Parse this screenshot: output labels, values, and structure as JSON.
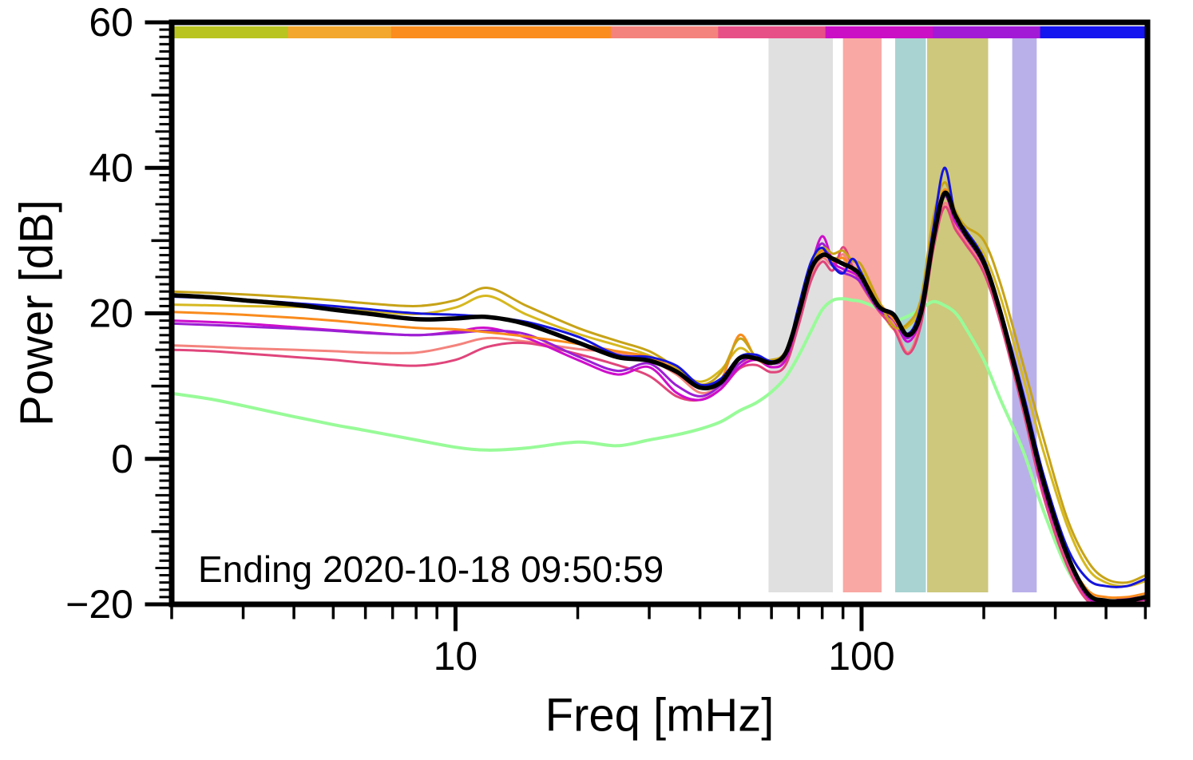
{
  "chart_data": {
    "type": "line",
    "title": "",
    "xlabel": "Freq [mHz]",
    "ylabel": "Power [dB]",
    "annotation": "Ending 2020-10-18 09:50:59",
    "x_scale": "log",
    "xlim": [
      2,
      506
    ],
    "ylim": [
      -20,
      60
    ],
    "grid": false,
    "legend": "none",
    "x_ticks_major": [
      {
        "value": 10,
        "label": "10"
      },
      {
        "value": 100,
        "label": "100"
      }
    ],
    "y_ticks_major": [
      {
        "value": -20,
        "label": "-20"
      },
      {
        "value": 0,
        "label": "0"
      },
      {
        "value": 20,
        "label": "20"
      },
      {
        "value": 40,
        "label": "40"
      },
      {
        "value": 60,
        "label": "60"
      }
    ],
    "bands": [
      {
        "name": "band-gray",
        "x0": 59,
        "x1": 85,
        "color": "#e0e0e0"
      },
      {
        "name": "band-red",
        "x0": 90,
        "x1": 112,
        "color": "#f9a8a4"
      },
      {
        "name": "band-teal",
        "x0": 121,
        "x1": 144,
        "color": "#a9d3d2"
      },
      {
        "name": "band-khaki",
        "x0": 145,
        "x1": 205,
        "color": "#cdc87c"
      },
      {
        "name": "band-lavender",
        "x0": 235,
        "x1": 270,
        "color": "#b9b0ea"
      }
    ],
    "colorbar_segments": [
      {
        "color": "#b9c421",
        "f0": 0.0,
        "f1": 0.119
      },
      {
        "color": "#f3a72c",
        "f0": 0.119,
        "f1": 0.225
      },
      {
        "color": "#fb8c1e",
        "f0": 0.225,
        "f1": 0.45
      },
      {
        "color": "#f4837d",
        "f0": 0.45,
        "f1": 0.56
      },
      {
        "color": "#e75087",
        "f0": 0.56,
        "f1": 0.67
      },
      {
        "color": "#cb0fc4",
        "f0": 0.67,
        "f1": 0.78
      },
      {
        "color": "#a21ad6",
        "f0": 0.78,
        "f1": 0.89
      },
      {
        "color": "#1515ef",
        "f0": 0.89,
        "f1": 1.0
      }
    ],
    "x": [
      2,
      2.5,
      3,
      4,
      5,
      6,
      8,
      10,
      12,
      15,
      20,
      25,
      30,
      35,
      40,
      45,
      50,
      55,
      60,
      65,
      70,
      75,
      80,
      85,
      90,
      95,
      100,
      110,
      120,
      130,
      140,
      150,
      160,
      170,
      180,
      200,
      220,
      250,
      280,
      320,
      360,
      400,
      450,
      500
    ],
    "series": [
      {
        "name": "spectrum-green",
        "color": "#98fb98",
        "lw": 4,
        "values": [
          9,
          8.2,
          7.3,
          5.8,
          4.7,
          3.9,
          2.6,
          1.6,
          1.2,
          1.5,
          2.3,
          1.8,
          2.6,
          3.3,
          4.1,
          5.1,
          6.6,
          7.7,
          9.2,
          11.2,
          14.2,
          17.5,
          20.5,
          21.8,
          22,
          21.8,
          21.6,
          20.6,
          19.1,
          19.6,
          20.6,
          21.6,
          21.1,
          20.1,
          18.1,
          13.6,
          8.1,
          1.1,
          -7,
          -15,
          -19,
          -20,
          -20,
          -20
        ]
      },
      {
        "name": "spectrum-gold-2",
        "color": "#d6b81f",
        "lw": 3,
        "values": [
          21.2,
          21.1,
          21,
          20.9,
          20.7,
          20.4,
          19.9,
          20.8,
          22.4,
          19.8,
          17.2,
          15.6,
          14.2,
          12.2,
          10.6,
          12.2,
          15.2,
          13.7,
          13.2,
          14.2,
          19.5,
          25.5,
          28.2,
          27.6,
          27.6,
          26.2,
          25.8,
          21.2,
          17.8,
          18.2,
          21.2,
          32,
          37,
          33.8,
          31.2,
          28.2,
          22.2,
          11.2,
          1.2,
          -9,
          -15,
          -17,
          -17.5,
          -16.8
        ]
      },
      {
        "name": "spectrum-salmon",
        "color": "#f4837d",
        "lw": 3,
        "values": [
          15.6,
          15.4,
          15.2,
          15,
          14.8,
          14.6,
          14.6,
          15.6,
          16.6,
          16.1,
          15.1,
          14.6,
          13.6,
          11.6,
          9.1,
          10.1,
          13.1,
          13.6,
          12.6,
          13.6,
          19.1,
          25.1,
          27.6,
          26.6,
          28.1,
          26.1,
          24.6,
          21.1,
          18.6,
          14.6,
          19.1,
          29.1,
          35.1,
          32.1,
          30.1,
          26.1,
          19.1,
          7.1,
          -4,
          -14,
          -19,
          -19.8,
          -19.5,
          -19.2
        ]
      },
      {
        "name": "spectrum-crimson",
        "color": "#e0457b",
        "lw": 3,
        "values": [
          15,
          14.8,
          14.5,
          14,
          13.6,
          13.2,
          12.8,
          13.6,
          15.4,
          15.9,
          14.4,
          12.9,
          11.4,
          8.6,
          8.1,
          9.6,
          12.4,
          12.9,
          11.9,
          12.9,
          18.4,
          24.4,
          27.1,
          25.9,
          29.1,
          26.4,
          23.9,
          20.4,
          17.9,
          14.4,
          18.4,
          28.6,
          34.6,
          31.6,
          29.6,
          25.6,
          18.6,
          6.6,
          -5,
          -14.5,
          -19.5,
          -19.9,
          -19.6,
          -19.4
        ]
      },
      {
        "name": "spectrum-magenta",
        "color": "#ce0ecb",
        "lw": 3,
        "values": [
          19,
          18.8,
          18.6,
          18.1,
          17.7,
          17.4,
          17,
          17.5,
          18,
          16.6,
          13.6,
          11.6,
          12.6,
          9.1,
          8.1,
          9.6,
          12.6,
          13.6,
          12.6,
          13.6,
          19.6,
          26.1,
          30.6,
          27.1,
          26.1,
          25.6,
          24.6,
          20.6,
          19.1,
          16.1,
          19.6,
          30.1,
          36.1,
          32.6,
          30.6,
          26.6,
          19.6,
          7.6,
          -4,
          -13.5,
          -19,
          -19.8,
          -19.5,
          -19.3
        ]
      },
      {
        "name": "spectrum-purple",
        "color": "#9b1fd4",
        "lw": 3,
        "values": [
          18.6,
          18.4,
          18.2,
          17.9,
          17.6,
          17.3,
          17,
          17.3,
          17.6,
          17.1,
          14.1,
          12.1,
          13.1,
          10.1,
          8.6,
          10.1,
          13.1,
          14.1,
          13.1,
          14.1,
          20.1,
          26.6,
          29.6,
          26.6,
          25.6,
          25.1,
          24.1,
          20.6,
          19.1,
          16.6,
          20.1,
          30.6,
          36.1,
          33.1,
          30.6,
          26.6,
          19.6,
          8.1,
          -3.5,
          -13,
          -18.5,
          -19.5,
          -19.2,
          -19
        ]
      },
      {
        "name": "spectrum-orange",
        "color": "#f98b1d",
        "lw": 3,
        "values": [
          20.2,
          20,
          19.8,
          19.4,
          19,
          18.6,
          18,
          17.8,
          17.4,
          16.8,
          15.8,
          14.8,
          14,
          12.2,
          9.8,
          10.8,
          17,
          13.8,
          13.2,
          14.2,
          20.2,
          26.2,
          28.6,
          27.2,
          27.6,
          26.2,
          25.2,
          21.6,
          19.2,
          17.2,
          20.6,
          30.2,
          37,
          33.2,
          31.2,
          27.2,
          20.2,
          8.2,
          -3,
          -13,
          -18,
          -19,
          -19,
          -18.5
        ]
      },
      {
        "name": "spectrum-gold-1",
        "color": "#c7a317",
        "lw": 3,
        "values": [
          23,
          22.8,
          22.6,
          22.2,
          21.8,
          21.4,
          21,
          21.8,
          23.5,
          21,
          18,
          16.2,
          14.8,
          12.5,
          10.2,
          11.8,
          16.5,
          14,
          13.6,
          14.8,
          20.5,
          26.5,
          29,
          28.2,
          28.6,
          27.2,
          26.6,
          21.8,
          18.2,
          18.6,
          22,
          33,
          38,
          34.2,
          32,
          30,
          24,
          13,
          3,
          -8,
          -14,
          -16.5,
          -17,
          -16
        ]
      },
      {
        "name": "spectrum-blue",
        "color": "#1414dc",
        "lw": 3,
        "values": [
          22.3,
          22.1,
          21.9,
          21.4,
          21,
          20.6,
          20,
          19.8,
          19.5,
          18.8,
          16.8,
          14.3,
          14,
          12.8,
          10.2,
          11,
          14,
          14.3,
          13.4,
          14.3,
          21,
          27,
          29,
          26.5,
          25.5,
          27.5,
          25.5,
          21,
          20,
          17.2,
          21,
          31.5,
          40,
          33.5,
          31.5,
          27.5,
          20.5,
          9,
          -2,
          -12,
          -16.5,
          -17.5,
          -17.5,
          -16.5
        ]
      },
      {
        "name": "mean-spectrum",
        "color": "#000000",
        "lw": 5.5,
        "values": [
          22.5,
          22.2,
          21.8,
          21.2,
          20.5,
          20,
          19.2,
          19.3,
          19.5,
          18.5,
          16,
          14,
          13.5,
          12,
          9.8,
          10.5,
          13.8,
          13.8,
          13.2,
          14.5,
          20,
          26,
          28,
          27.5,
          26.8,
          26.2,
          25,
          21,
          19.8,
          17,
          20,
          30,
          36.5,
          33.5,
          31,
          27,
          20,
          8,
          -3,
          -13,
          -18.5,
          -19.5,
          -19.5,
          -19
        ]
      }
    ]
  }
}
